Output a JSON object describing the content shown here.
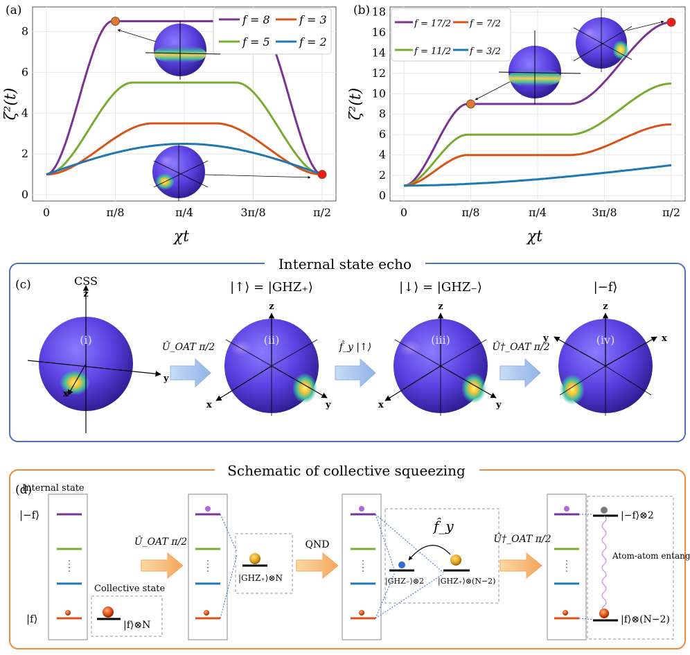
{
  "chart_data": [
    {
      "type": "line",
      "panel": "(a)",
      "xlabel": "χt",
      "ylabel": "ζ²(t)",
      "x_ticks": [
        "0",
        "π/8",
        "π/4",
        "3π/8",
        "π/2"
      ],
      "ylim": [
        -0.3,
        9.2
      ],
      "y_ticks": [
        "0",
        "2",
        "4",
        "6",
        "8"
      ],
      "legend": [
        "f = 8",
        "f = 3",
        "f = 5",
        "f = 2"
      ],
      "series": [
        {
          "name": "f = 8",
          "color": "#7b3294",
          "start": 1,
          "plateau": 8.5
        },
        {
          "name": "f = 5",
          "color": "#77ac30",
          "start": 1,
          "plateau": 5.5
        },
        {
          "name": "f = 3",
          "color": "#d95319",
          "start": 1,
          "plateau": 3.5
        },
        {
          "name": "f = 2",
          "color": "#1f77b4",
          "start": 1,
          "peak": 2.5
        }
      ],
      "markers": [
        {
          "x": "π/8",
          "y": 8.5
        },
        {
          "x": "π/2",
          "y": 1.0
        }
      ]
    },
    {
      "type": "line",
      "panel": "(b)",
      "xlabel": "χt",
      "ylabel": "ζ²(t)",
      "x_ticks": [
        "0",
        "π/8",
        "π/4",
        "3π/8",
        "π/2"
      ],
      "ylim": [
        -0.5,
        18.5
      ],
      "y_ticks": [
        "0",
        "2",
        "4",
        "6",
        "8",
        "10",
        "12",
        "14",
        "16",
        "18"
      ],
      "legend": [
        "f = 17/2",
        "f = 7/2",
        "f = 11/2",
        "f = 3/2"
      ],
      "series": [
        {
          "name": "f = 17/2",
          "color": "#7b3294",
          "start": 1,
          "plateau": 9,
          "end": 17
        },
        {
          "name": "f = 11/2",
          "color": "#77ac30",
          "start": 1,
          "plateau": 6,
          "end": 11
        },
        {
          "name": "f = 7/2",
          "color": "#d95319",
          "start": 1,
          "plateau": 4,
          "end": 7
        },
        {
          "name": "f = 3/2",
          "color": "#1f77b4",
          "start": 1,
          "end": 3
        }
      ],
      "markers": [
        {
          "x": "π/8",
          "y": 9
        },
        {
          "x": "π/2",
          "y": 17
        }
      ]
    }
  ],
  "panel_a_label": "(a)",
  "panel_b_label": "(b)",
  "panel_c": {
    "label": "(c)",
    "title": "Internal state echo",
    "css_label": "CSS",
    "state2": "|↑⟩ = |GHZ₊⟩",
    "state3": "|↓⟩ = |GHZ₋⟩",
    "state4": "|−f⟩",
    "sphere_labels": [
      "(i)",
      "(ii)",
      "(iii)",
      "(iv)"
    ],
    "op1": "Û_OAT π/2",
    "op2": "f̂_y |↑⟩",
    "op3": "Û†_OAT π/2",
    "axis_x": "x",
    "axis_y": "y",
    "axis_z": "z"
  },
  "panel_d": {
    "label": "(d)",
    "title": "Schematic of collective squeezing",
    "internal_state": "Internal state",
    "collective_state": "Collective state",
    "level_top": "|−f⟩",
    "level_bottom": "|f⟩",
    "state_f": "|f⟩⊗N",
    "state_ghz": "|GHZ₊⟩⊗N",
    "op1": "Û_OAT π/2",
    "op2": "QND",
    "op3": "Û†_OAT π/2",
    "fy": "f̂_y",
    "ghz_minus": "|GHZ₋⟩⊗2",
    "ghz_plus_rest": "|GHZ₊⟩⊗(N−2)",
    "minus_f_2": "|−f⟩⊗2",
    "f_rest": "|f⟩⊗(N−2)",
    "entanglement": "Atom-atom entanglement"
  }
}
